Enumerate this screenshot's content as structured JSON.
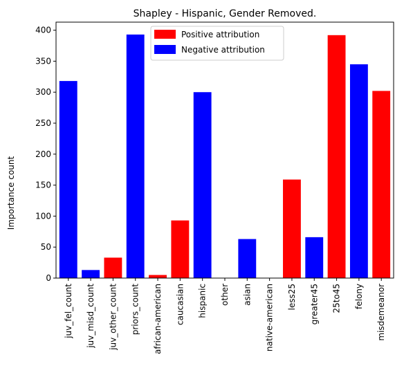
{
  "chart_data": {
    "type": "bar",
    "title": "Shapley - Hispanic, Gender Removed.",
    "xlabel": "",
    "ylabel": "Importance count",
    "ylim": [
      0,
      413
    ],
    "yticks": [
      0,
      50,
      100,
      150,
      200,
      250,
      300,
      350,
      400
    ],
    "grid": false,
    "legend_placement": "top-center",
    "legend": [
      {
        "label": "Positive attribution",
        "color": "#ff0000"
      },
      {
        "label": "Negative attribution",
        "color": "#0000ff"
      }
    ],
    "categories": [
      "juv_fel_count",
      "juv_misd_count",
      "juv_other_count",
      "priors_count",
      "african-american",
      "caucasian",
      "hispanic",
      "other",
      "asian",
      "native-american",
      "less25",
      "greater45",
      "25to45",
      "felony",
      "misdemeanor"
    ],
    "values": [
      318,
      13,
      33,
      393,
      5,
      93,
      300,
      0,
      63,
      0,
      159,
      66,
      392,
      345,
      302
    ],
    "colors": [
      "#0000ff",
      "#0000ff",
      "#ff0000",
      "#0000ff",
      "#ff0000",
      "#ff0000",
      "#0000ff",
      "#0000ff",
      "#0000ff",
      "#ff0000",
      "#ff0000",
      "#0000ff",
      "#ff0000",
      "#0000ff",
      "#ff0000"
    ]
  }
}
